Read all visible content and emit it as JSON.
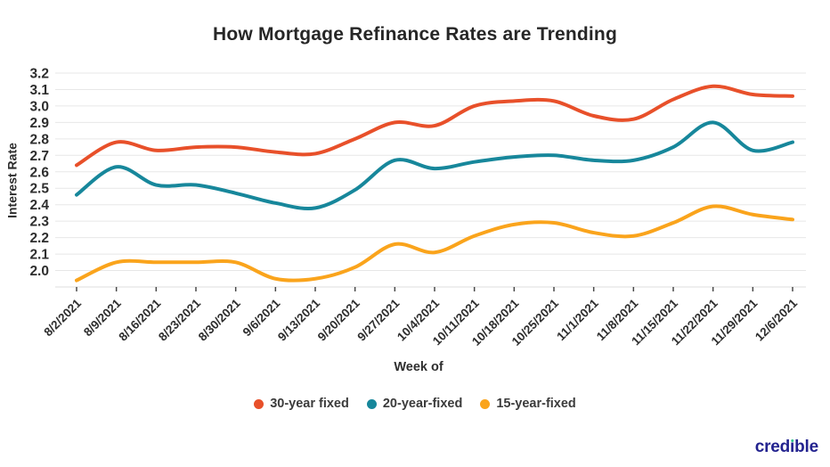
{
  "title": "How Mortgage Refinance Rates are Trending",
  "colors": {
    "series_30yr": "#e8502a",
    "series_20yr": "#17879b",
    "series_15yr": "#faa41c",
    "grid": "#e7e7e7",
    "baseline": "#dcdcdc",
    "tick": "#4a4a4a",
    "text": "#2e2e2e",
    "logo_navy": "#23238f",
    "logo_dot": "#2bc48a"
  },
  "logo": {
    "text": "credible",
    "parts": [
      "cred",
      "ı",
      "ble"
    ]
  },
  "chart_data": {
    "type": "line",
    "title": "How Mortgage Refinance Rates are Trending",
    "xlabel": "Week of",
    "ylabel": "Interest Rate",
    "x": [
      "8/2/2021",
      "8/9/2021",
      "8/16/2021",
      "8/23/2021",
      "8/30/2021",
      "9/6/2021",
      "9/13/2021",
      "9/20/2021",
      "9/27/2021",
      "10/4/2021",
      "10/11/2021",
      "10/18/2021",
      "10/25/2021",
      "11/1/2021",
      "11/8/2021",
      "11/15/2021",
      "11/22/2021",
      "11/29/2021",
      "12/6/2021"
    ],
    "series": [
      {
        "name": "30-year fixed",
        "color": "#e8502a",
        "values": [
          2.64,
          2.78,
          2.73,
          2.75,
          2.75,
          2.72,
          2.71,
          2.8,
          2.9,
          2.88,
          3.0,
          3.03,
          3.03,
          2.94,
          2.92,
          3.04,
          3.12,
          3.07,
          3.06
        ]
      },
      {
        "name": "20-year-fixed",
        "color": "#17879b",
        "values": [
          2.46,
          2.63,
          2.52,
          2.52,
          2.47,
          2.41,
          2.38,
          2.49,
          2.67,
          2.62,
          2.66,
          2.69,
          2.7,
          2.67,
          2.67,
          2.75,
          2.9,
          2.73,
          2.78
        ]
      },
      {
        "name": "15-year-fixed",
        "color": "#faa41c",
        "values": [
          1.94,
          2.05,
          2.05,
          2.05,
          2.05,
          1.95,
          1.95,
          2.02,
          2.16,
          2.11,
          2.21,
          2.28,
          2.29,
          2.23,
          2.21,
          2.29,
          2.39,
          2.34,
          2.31
        ]
      }
    ],
    "y_ticks": [
      3.2,
      3.1,
      3.0,
      2.9,
      2.8,
      2.7,
      2.6,
      2.5,
      2.4,
      2.3,
      2.2,
      2.1,
      2.0
    ],
    "ylim": [
      1.9,
      3.2
    ],
    "grid": true,
    "legend_position": "bottom"
  }
}
